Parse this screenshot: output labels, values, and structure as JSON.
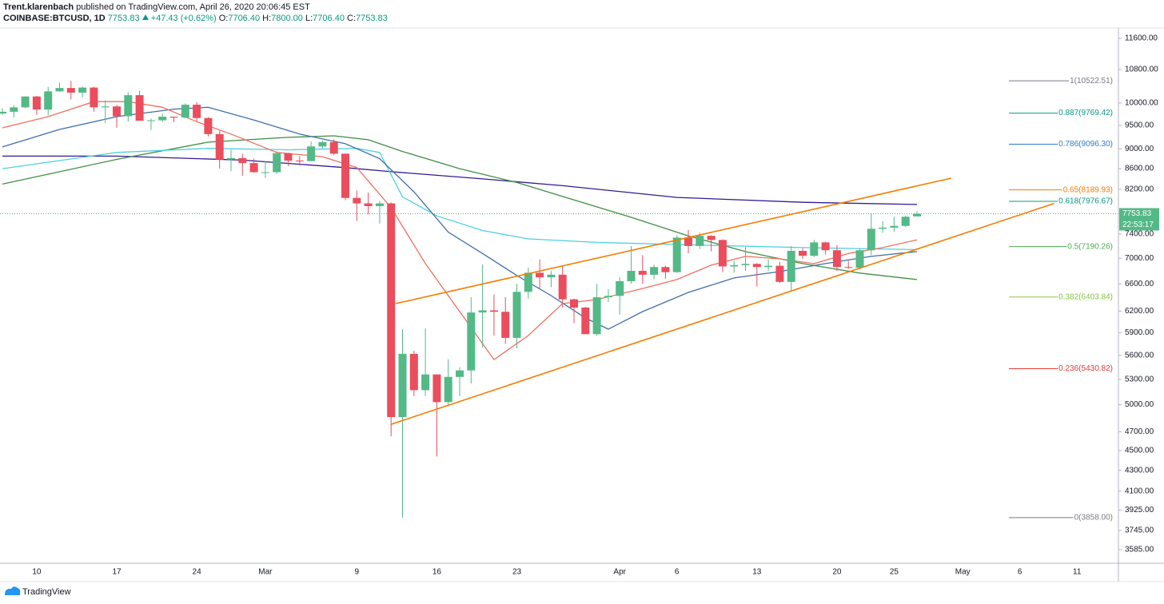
{
  "chart_data": {
    "type": "candlestick",
    "author": "Trent.klarenbach",
    "title": "published on TradingView.com, April 26, 2020 20:06:45 EST",
    "subtitle": "COINBASE:BTCUSD, 1D",
    "last_text": "7753.83",
    "change": "+47.43 (+0.62%)",
    "ohlc_names": [
      "O:",
      "H:",
      "L:",
      "C:"
    ],
    "ohlc_texts": [
      "7706.40",
      "7800.00",
      "7706.40",
      "7753.83"
    ],
    "brand": "TradingView",
    "log_scale": true,
    "grid": false,
    "up_color": "#53b987",
    "down_color": "#eb4d5c",
    "ylim": [
      3474,
      11880
    ],
    "yticks": [
      {
        "value": 11600,
        "label": "11600.00"
      },
      {
        "value": 10800,
        "label": "10800.00"
      },
      {
        "value": 10000,
        "label": "10000.00"
      },
      {
        "value": 9500,
        "label": "9500.00"
      },
      {
        "value": 9000,
        "label": "9000.00"
      },
      {
        "value": 8600,
        "label": "8600.00"
      },
      {
        "value": 8200,
        "label": "8200.00"
      },
      {
        "value": 7400,
        "label": "7400.00"
      },
      {
        "value": 7000,
        "label": "7000.00"
      },
      {
        "value": 6600,
        "label": "6600.00"
      },
      {
        "value": 6200,
        "label": "6200.00"
      },
      {
        "value": 5900,
        "label": "5900.00"
      },
      {
        "value": 5600,
        "label": "5600.00"
      },
      {
        "value": 5300,
        "label": "5300.00"
      },
      {
        "value": 5000,
        "label": "5000.00"
      },
      {
        "value": 4700,
        "label": "4700.00"
      },
      {
        "value": 4500,
        "label": "4500.00"
      },
      {
        "value": 4300,
        "label": "4300.00"
      },
      {
        "value": 4100,
        "label": "4100.00"
      },
      {
        "value": 3925,
        "label": "3925.00"
      },
      {
        "value": 3745,
        "label": "3745.00"
      },
      {
        "value": 3585,
        "label": "3585.00"
      }
    ],
    "categories": [
      null,
      null,
      null,
      "10",
      null,
      null,
      null,
      null,
      null,
      null,
      "17",
      null,
      null,
      null,
      null,
      null,
      null,
      "24",
      null,
      null,
      null,
      null,
      null,
      "Mar",
      null,
      null,
      null,
      null,
      null,
      null,
      null,
      "9",
      null,
      null,
      null,
      null,
      null,
      null,
      "16",
      null,
      null,
      null,
      null,
      null,
      null,
      "23",
      null,
      null,
      null,
      null,
      null,
      null,
      null,
      null,
      "Apr",
      null,
      null,
      null,
      null,
      "6",
      null,
      null,
      null,
      null,
      null,
      null,
      "13",
      null,
      null,
      null,
      null,
      null,
      null,
      "20",
      null,
      null,
      null,
      null,
      "25",
      null,
      null,
      null,
      null,
      null,
      "May",
      null,
      null,
      null,
      null,
      "6",
      null,
      null,
      null,
      null,
      "11"
    ],
    "open": [
      9760,
      9800,
      9900,
      10150,
      9850,
      10270,
      10350,
      10240,
      10360,
      9900,
      9920,
      9700,
      10180,
      9600,
      9610,
      9690,
      9670,
      9960,
      9660,
      9310,
      8780,
      8810,
      8710,
      8530,
      8530,
      8910,
      8760,
      8750,
      9050,
      9140,
      8900,
      8040,
      7940,
      7890,
      7940,
      4860,
      5620,
      5170,
      5360,
      5030,
      5330,
      5410,
      6180,
      6210,
      6190,
      5830,
      6480,
      6770,
      6700,
      6740,
      6370,
      6250,
      5880,
      6400,
      6420,
      6640,
      6800,
      6740,
      6860,
      6780,
      7340,
      7200,
      7370,
      7300,
      6870,
      6890,
      6910,
      6860,
      6880,
      6630,
      7120,
      7040,
      7260,
      7130,
      6860,
      6850,
      7130,
      7490,
      7510,
      7540,
      7706.4,
      null,
      null,
      null,
      null,
      null,
      null,
      null,
      null,
      null,
      null,
      null,
      null,
      null,
      null
    ],
    "high": [
      9880,
      9950,
      10150,
      10160,
      10380,
      10480,
      10520,
      10390,
      10380,
      10060,
      9960,
      10250,
      10280,
      9650,
      9760,
      9690,
      9990,
      10020,
      9680,
      9380,
      8980,
      8900,
      8800,
      8750,
      8950,
      8920,
      8850,
      9150,
      9170,
      9200,
      8900,
      8180,
      8140,
      7980,
      7960,
      5950,
      5660,
      5960,
      5360,
      5550,
      5450,
      6400,
      6900,
      6440,
      6400,
      6600,
      6850,
      6980,
      6800,
      6880,
      6380,
      6260,
      6600,
      6520,
      6700,
      7200,
      7050,
      6900,
      6880,
      7380,
      7470,
      7420,
      7380,
      7310,
      6960,
      7180,
      6920,
      6980,
      6940,
      7200,
      7160,
      7300,
      7270,
      7210,
      6960,
      7160,
      7760,
      7620,
      7700,
      7720,
      7800,
      null,
      null,
      null,
      null,
      null,
      null,
      null,
      null,
      null,
      null,
      null,
      null,
      null,
      null
    ],
    "low": [
      9730,
      9670,
      9880,
      9730,
      9720,
      10260,
      10080,
      10130,
      9800,
      9550,
      9450,
      9580,
      9600,
      9400,
      9570,
      9570,
      9650,
      9590,
      9260,
      8600,
      8550,
      8460,
      8520,
      8420,
      8500,
      8650,
      8660,
      8750,
      9010,
      8870,
      8000,
      7630,
      7740,
      7580,
      4650,
      3858,
      5100,
      5100,
      4440,
      4980,
      5100,
      5250,
      5700,
      5860,
      5750,
      5690,
      6380,
      6530,
      6550,
      6250,
      6030,
      5880,
      5860,
      6330,
      6150,
      6600,
      6600,
      6670,
      6680,
      6770,
      7080,
      7150,
      7110,
      6780,
      6770,
      6800,
      6560,
      6800,
      6610,
      6480,
      6990,
      7020,
      7060,
      6800,
      6830,
      6830,
      7050,
      7420,
      7440,
      7520,
      7706.4,
      null,
      null,
      null,
      null,
      null,
      null,
      null,
      null,
      null,
      null,
      null,
      null,
      null,
      null
    ],
    "close": [
      9800,
      9900,
      10150,
      9850,
      10270,
      10350,
      10240,
      10360,
      9900,
      9920,
      9700,
      10180,
      9600,
      9610,
      9690,
      9670,
      9960,
      9660,
      9310,
      8780,
      8810,
      8710,
      8530,
      8530,
      8910,
      8760,
      8750,
      9050,
      9140,
      8900,
      8040,
      7940,
      7890,
      7940,
      4860,
      5620,
      5170,
      5360,
      5030,
      5330,
      5410,
      6180,
      6210,
      6190,
      5830,
      6480,
      6770,
      6700,
      6740,
      6370,
      6250,
      5880,
      6400,
      6420,
      6640,
      6800,
      6740,
      6860,
      6780,
      7340,
      7200,
      7370,
      7300,
      6870,
      6890,
      6910,
      6860,
      6880,
      6630,
      7120,
      7040,
      7260,
      7130,
      6860,
      6850,
      7130,
      7490,
      7510,
      7540,
      7700,
      7753.83,
      null,
      null,
      null,
      null,
      null,
      null,
      null,
      null,
      null,
      null,
      null,
      null,
      null,
      null
    ],
    "lines": [
      {
        "color": "#311b92",
        "x": [
          0,
          10,
          21,
          30,
          34,
          42,
          49,
          59,
          70,
          80
        ],
        "values": [
          8850,
          8850,
          8770,
          8620,
          8540,
          8400,
          8270,
          8050,
          7960,
          7920
        ]
      },
      {
        "color": "#3e8e41",
        "x": [
          0,
          10,
          18,
          25,
          29,
          32,
          35,
          40,
          45,
          50,
          55,
          60,
          65,
          70,
          75,
          80
        ],
        "values": [
          8300,
          8785,
          9140,
          9240,
          9273,
          9190,
          8946,
          8600,
          8330,
          8004,
          7690,
          7370,
          7108,
          6915,
          6765,
          6666
        ]
      },
      {
        "color": "#4dd0e1",
        "x": [
          0,
          10,
          18,
          25,
          31,
          33,
          35,
          38,
          42,
          46,
          52,
          60,
          70,
          80
        ],
        "values": [
          8600,
          8925,
          9010,
          8980,
          9010,
          8925,
          8060,
          7716,
          7460,
          7318,
          7260,
          7220,
          7173,
          7140
        ]
      },
      {
        "color": "#3f6fa8",
        "x": [
          0,
          5,
          10,
          15,
          18,
          22,
          26,
          30,
          33,
          36,
          39,
          42,
          45,
          48,
          51,
          53,
          56,
          60,
          64,
          68,
          72,
          76,
          80
        ],
        "values": [
          9040,
          9410,
          9690,
          9860,
          9900,
          9614,
          9310,
          9106,
          8800,
          8153,
          7433,
          7076,
          6728,
          6424,
          6102,
          5948,
          6193,
          6471,
          6690,
          6789,
          6915,
          7030,
          7108
        ]
      },
      {
        "color": "#ef6f5e",
        "x": [
          0,
          4,
          8,
          11,
          14,
          17,
          20,
          24,
          28,
          31,
          34,
          37,
          40,
          43,
          46,
          49,
          52,
          56,
          59,
          62,
          65,
          68,
          71,
          74,
          77,
          80
        ],
        "values": [
          9445,
          9690,
          10030,
          10030,
          9900,
          9580,
          9310,
          8925,
          8840,
          8622,
          7862,
          6915,
          6193,
          5546,
          5861,
          6308,
          6366,
          6530,
          6666,
          6890,
          7030,
          6990,
          6915,
          7076,
          7173,
          7302
        ]
      }
    ],
    "trendlines": [
      {
        "color": "#f57c00",
        "x": [
          34.4,
          83
        ],
        "values": [
          6308,
          8413
        ]
      },
      {
        "color": "#f57c00",
        "x": [
          34,
          92
        ],
        "values": [
          4780,
          7940
        ]
      }
    ],
    "fib_levels": [
      {
        "value": 10522.51,
        "label": "1(10522.51)",
        "color": "#787b86"
      },
      {
        "value": 9769.42,
        "label": "0.887(9769.42)",
        "color": "#089981"
      },
      {
        "value": 9096.3,
        "label": "0.786(9096.30)",
        "color": "#2e7bcf"
      },
      {
        "value": 8189.93,
        "label": "0.65(8189.93)",
        "color": "#f57c00"
      },
      {
        "value": 7976.67,
        "label": "0.618(7976.67)",
        "color": "#089981"
      },
      {
        "value": 7190.26,
        "label": "0.5(7190.26)",
        "color": "#4caf50"
      },
      {
        "value": 6403.84,
        "label": "0.382(6403.84)",
        "color": "#8bc34a"
      },
      {
        "value": 5430.82,
        "label": "0.236(5430.82)",
        "color": "#e53935"
      },
      {
        "value": 3858.0,
        "label": "0(3858.00)",
        "color": "#787b86"
      }
    ],
    "last_price": {
      "value": 7753.83,
      "label": "7753.83"
    },
    "countdown": "22:53:17"
  }
}
